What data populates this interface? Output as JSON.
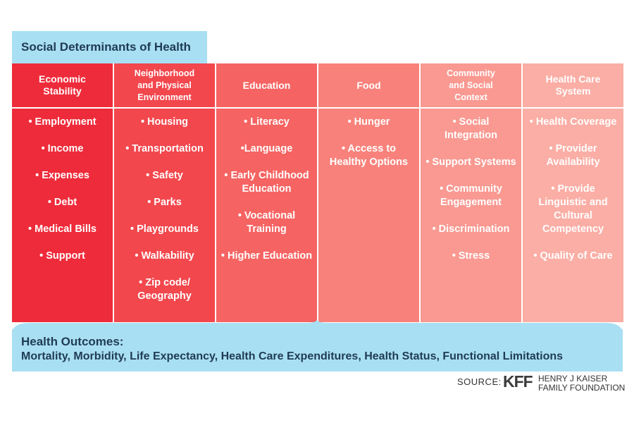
{
  "title": "Social Determinants of Health",
  "columns": [
    {
      "header": "Economic\nStability",
      "color": "#ee2b3a",
      "items": [
        "• Employment",
        "• Income",
        "• Expenses",
        "• Debt",
        "• Medical Bills",
        "• Support"
      ]
    },
    {
      "header": "Neighborhood\nand Physical\nEnvironment",
      "color": "#f2474d",
      "items": [
        "• Housing",
        "• Transportation",
        "• Safety",
        "• Parks",
        "• Playgrounds",
        "• Walkability",
        "• Zip code/\nGeography"
      ]
    },
    {
      "header": "Education",
      "color": "#f56462",
      "items": [
        "• Literacy",
        "•Language",
        "• Early Childhood\nEducation",
        "• Vocational\nTraining",
        "• Higher Education"
      ]
    },
    {
      "header": "Food",
      "color": "#f8827b",
      "items": [
        "• Hunger",
        "• Access to\nHealthy Options"
      ]
    },
    {
      "header": "Community\nand Social\nContext",
      "color": "#f99991",
      "items": [
        "• Social\nIntegration",
        "• Support Systems",
        "• Community\nEngagement",
        "• Discrimination",
        "• Stress"
      ]
    },
    {
      "header": "Health Care\nSystem",
      "color": "#fbaea5",
      "items": [
        "• Health Coverage",
        "• Provider\nAvailability",
        "• Provide\nLinguistic and\nCultural\nCompetency",
        "• Quality of Care"
      ]
    }
  ],
  "outcomes": {
    "title": "Health Outcomes:",
    "list": "Mortality, Morbidity, Life Expectancy, Health Care Expenditures, Health Status, Functional Limitations"
  },
  "source": {
    "label": "SOURCE:",
    "logo": "KFF",
    "org": "HENRY J KAISER\nFAMILY FOUNDATION"
  },
  "colors": {
    "title_bg": "#a9dff3",
    "title_text": "#1f3b55"
  }
}
